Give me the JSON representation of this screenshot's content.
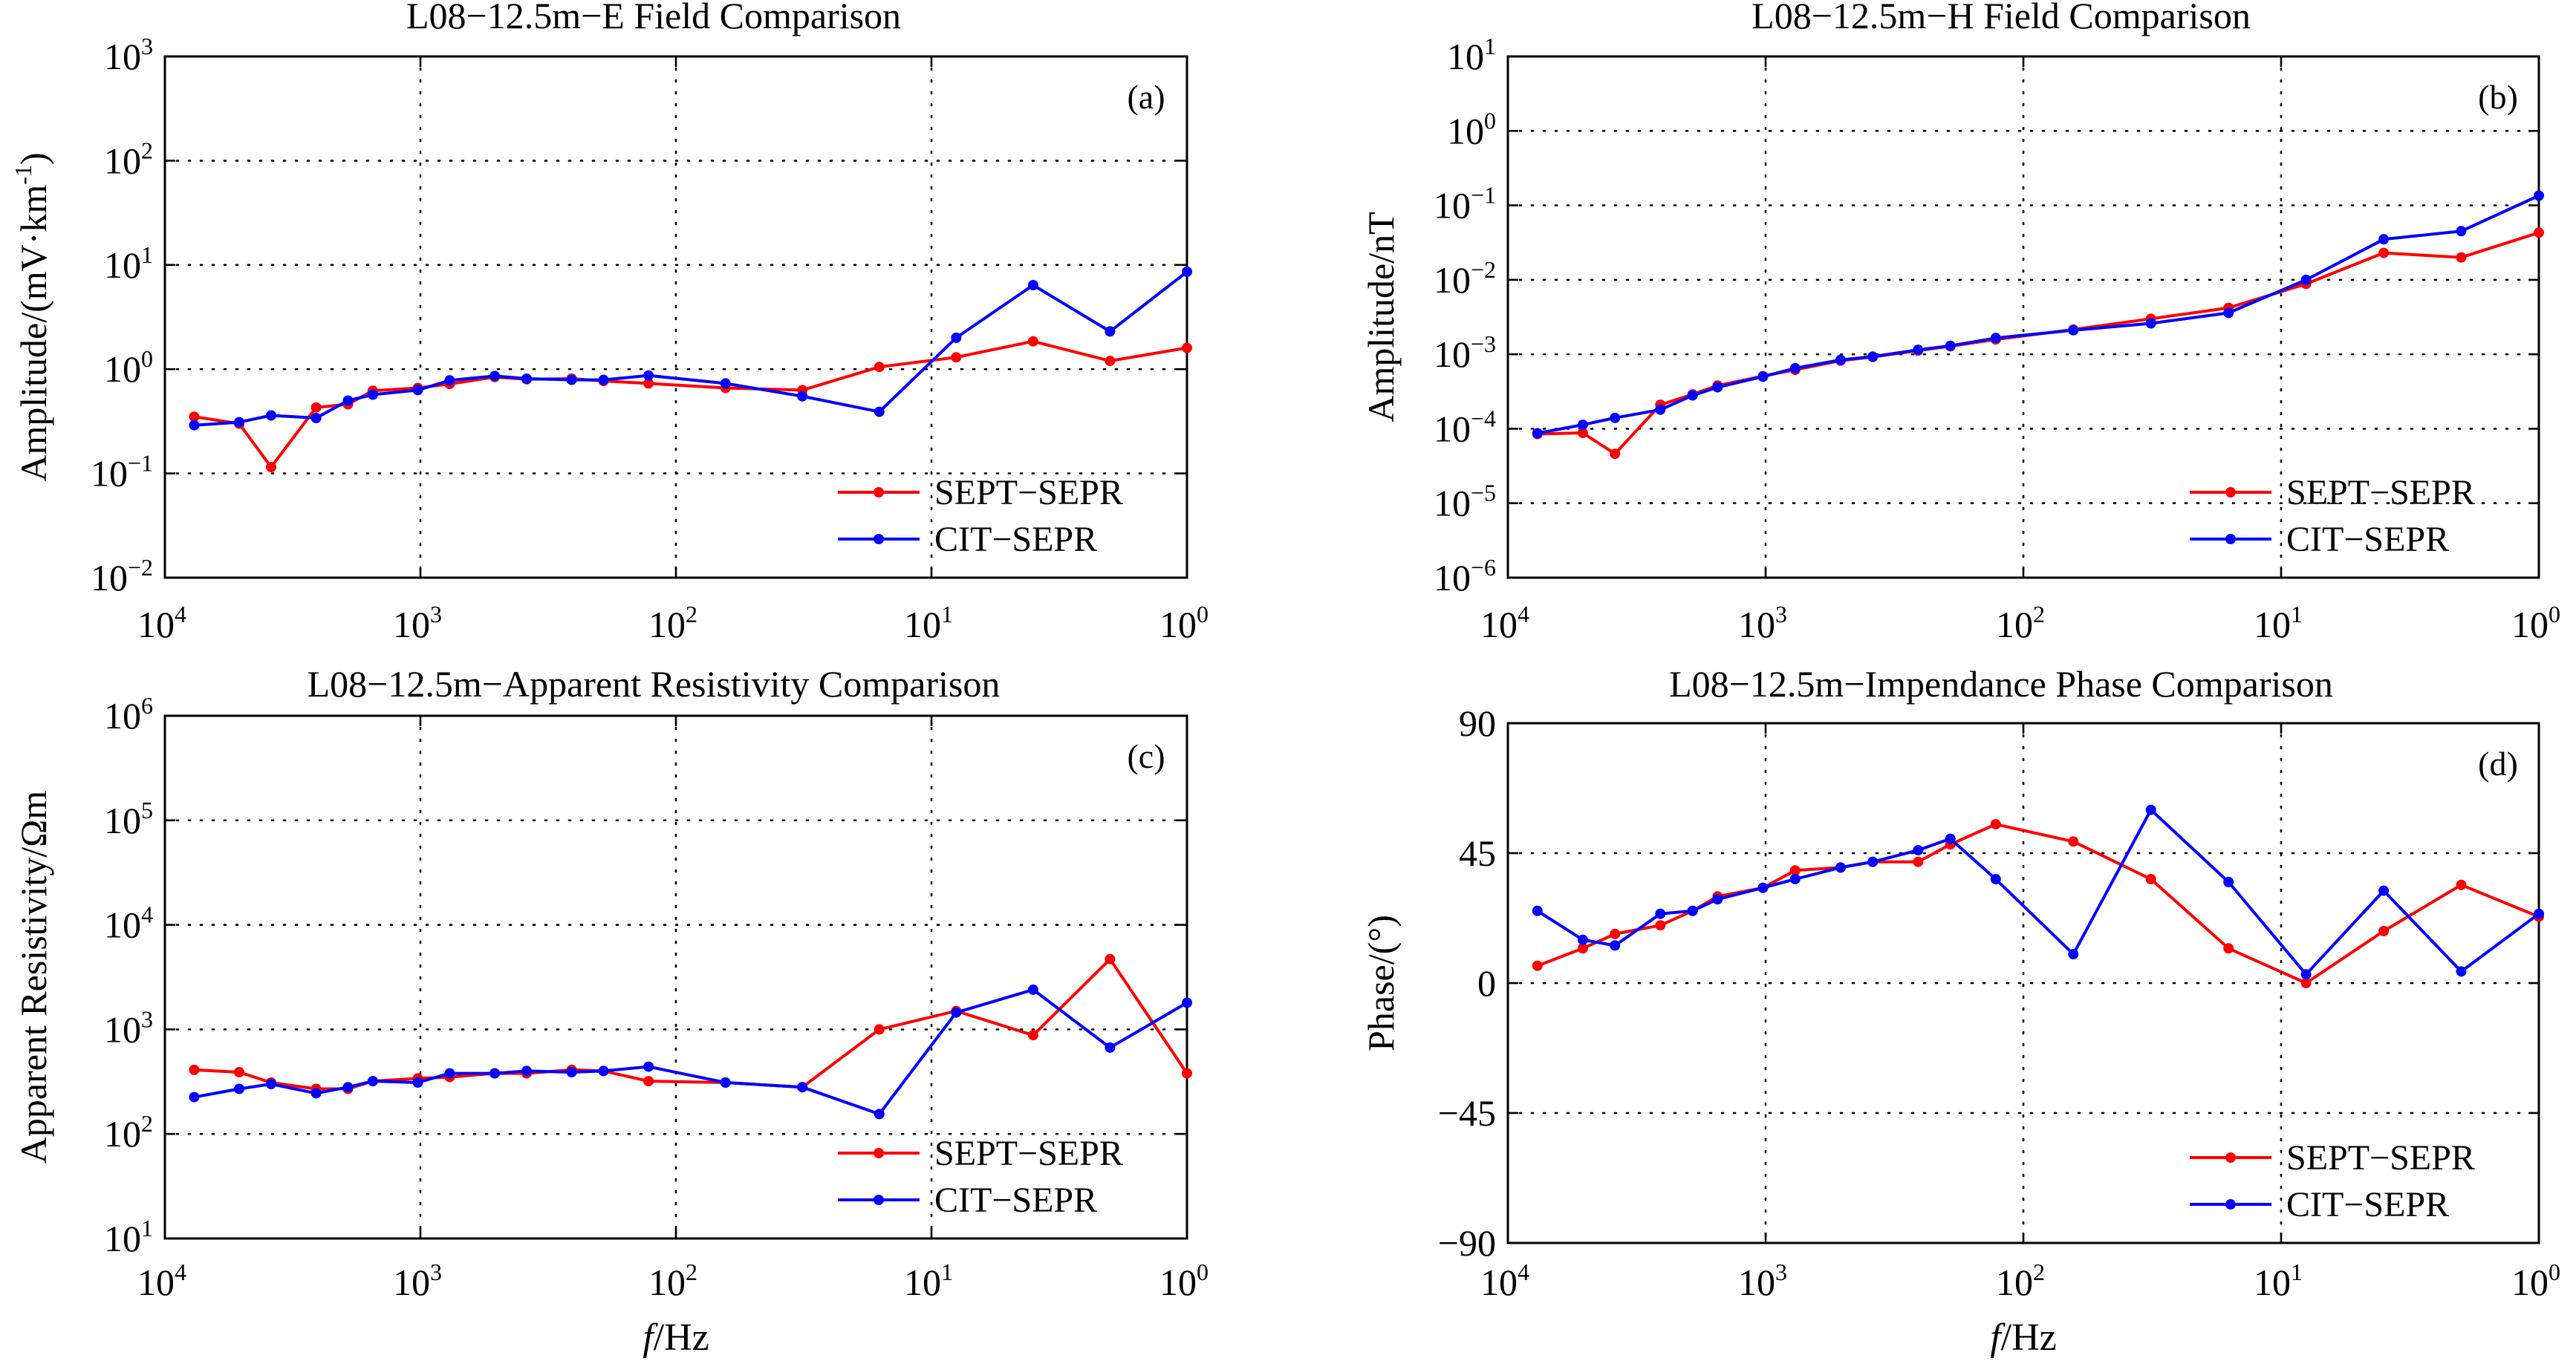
{
  "chart_data": [
    {
      "id": "a",
      "type": "line",
      "title": "L08−12.5m−E Field Comparison",
      "panel_label": "(a)",
      "ylabel": "Amplitude/(mV·km",
      "ylabel_sup": "-1",
      "ylabel_suffix": ")",
      "xlabel": "",
      "xscale": "log",
      "yscale": "log",
      "xlim": [
        10000,
        1
      ],
      "ylim": [
        0.01,
        1000
      ],
      "x_ticks": [
        {
          "base": "10",
          "exp": "4"
        },
        {
          "base": "10",
          "exp": "3"
        },
        {
          "base": "10",
          "exp": "2"
        },
        {
          "base": "10",
          "exp": "1"
        },
        {
          "base": "10",
          "exp": "0"
        }
      ],
      "y_ticks": [
        {
          "base": "10",
          "exp": "−2"
        },
        {
          "base": "10",
          "exp": "−1"
        },
        {
          "base": "10",
          "exp": "0"
        },
        {
          "base": "10",
          "exp": "1"
        },
        {
          "base": "10",
          "exp": "2"
        },
        {
          "base": "10",
          "exp": "3"
        }
      ],
      "grid": true,
      "legend_position": "bottom-right",
      "x": [
        7680,
        5120,
        3840,
        2560,
        1920,
        1536,
        1024,
        768,
        512,
        384,
        256,
        192,
        128,
        64,
        32,
        16,
        8,
        4,
        2,
        1
      ],
      "series": [
        {
          "name": "SEPT−SEPR",
          "color": "#ff0000",
          "values": [
            0.35,
            0.3,
            0.115,
            0.43,
            0.46,
            0.62,
            0.66,
            0.72,
            0.84,
            0.8,
            0.81,
            0.77,
            0.73,
            0.66,
            0.63,
            1.05,
            1.3,
            1.85,
            1.2,
            1.6
          ]
        },
        {
          "name": "CIT−SEPR",
          "color": "#0000ff",
          "values": [
            0.29,
            0.31,
            0.36,
            0.34,
            0.5,
            0.57,
            0.63,
            0.78,
            0.86,
            0.81,
            0.79,
            0.79,
            0.87,
            0.73,
            0.55,
            0.39,
            2.0,
            6.4,
            2.3,
            8.6
          ]
        }
      ]
    },
    {
      "id": "b",
      "type": "line",
      "title": "L08−12.5m−H Field Comparison",
      "panel_label": "(b)",
      "ylabel": "Amplitude/nT",
      "ylabel_sup": "",
      "ylabel_suffix": "",
      "xlabel": "",
      "xscale": "log",
      "yscale": "log",
      "xlim": [
        10000,
        1
      ],
      "ylim": [
        1e-06,
        10
      ],
      "x_ticks": [
        {
          "base": "10",
          "exp": "4"
        },
        {
          "base": "10",
          "exp": "3"
        },
        {
          "base": "10",
          "exp": "2"
        },
        {
          "base": "10",
          "exp": "1"
        },
        {
          "base": "10",
          "exp": "0"
        }
      ],
      "y_ticks": [
        {
          "base": "10",
          "exp": "−6"
        },
        {
          "base": "10",
          "exp": "−5"
        },
        {
          "base": "10",
          "exp": "−4"
        },
        {
          "base": "10",
          "exp": "−3"
        },
        {
          "base": "10",
          "exp": "−2"
        },
        {
          "base": "10",
          "exp": "−1"
        },
        {
          "base": "10",
          "exp": "0"
        },
        {
          "base": "10",
          "exp": "1"
        }
      ],
      "grid": true,
      "legend_position": "bottom-right",
      "x": [
        7680,
        5120,
        3840,
        2560,
        1920,
        1536,
        1024,
        768,
        512,
        384,
        256,
        192,
        128,
        64,
        32,
        16,
        8,
        4,
        2,
        1
      ],
      "series": [
        {
          "name": "SEPT−SEPR",
          "color": "#ff0000",
          "values": [
            8.5e-05,
            8.8e-05,
            4.6e-05,
            0.00021,
            0.00029,
            0.00038,
            0.00051,
            0.00062,
            0.00082,
            0.00092,
            0.00112,
            0.00128,
            0.00158,
            0.00215,
            0.003,
            0.0042,
            0.0088,
            0.023,
            0.02,
            0.043
          ]
        },
        {
          "name": "CIT−SEPR",
          "color": "#0000ff",
          "values": [
            8.7e-05,
            0.000113,
            0.00014,
            0.00018,
            0.00028,
            0.00036,
            0.0005,
            0.00065,
            0.00084,
            0.00093,
            0.00115,
            0.0013,
            0.00165,
            0.0021,
            0.0026,
            0.0036,
            0.01,
            0.035,
            0.045,
            0.135
          ]
        }
      ]
    },
    {
      "id": "c",
      "type": "line",
      "title": "L08−12.5m−Apparent Resistivity Comparison",
      "panel_label": "(c)",
      "ylabel": "Apparent Resistivity/Ωm",
      "ylabel_sup": "",
      "ylabel_suffix": "",
      "xlabel": "f/Hz",
      "xscale": "log",
      "yscale": "log",
      "xlim": [
        10000,
        1
      ],
      "ylim": [
        10,
        1000000
      ],
      "x_ticks": [
        {
          "base": "10",
          "exp": "4"
        },
        {
          "base": "10",
          "exp": "3"
        },
        {
          "base": "10",
          "exp": "2"
        },
        {
          "base": "10",
          "exp": "1"
        },
        {
          "base": "10",
          "exp": "0"
        }
      ],
      "y_ticks": [
        {
          "base": "10",
          "exp": "1"
        },
        {
          "base": "10",
          "exp": "2"
        },
        {
          "base": "10",
          "exp": "3"
        },
        {
          "base": "10",
          "exp": "4"
        },
        {
          "base": "10",
          "exp": "5"
        },
        {
          "base": "10",
          "exp": "6"
        }
      ],
      "grid": true,
      "legend_position": "bottom-right",
      "x": [
        7680,
        5120,
        3840,
        2560,
        1920,
        1536,
        1024,
        768,
        512,
        384,
        256,
        192,
        128,
        64,
        32,
        16,
        8,
        4,
        2,
        1
      ],
      "series": [
        {
          "name": "SEPT−SEPR",
          "color": "#ff0000",
          "values": [
            410,
            390,
            310,
            270,
            270,
            320,
            340,
            350,
            380,
            380,
            410,
            400,
            320,
            310,
            280,
            1000,
            1500,
            880,
            4700,
            380
          ]
        },
        {
          "name": "CIT−SEPR",
          "color": "#0000ff",
          "values": [
            225,
            270,
            300,
            245,
            280,
            320,
            310,
            380,
            380,
            400,
            390,
            400,
            440,
            310,
            280,
            155,
            1450,
            2400,
            670,
            1800
          ]
        }
      ]
    },
    {
      "id": "d",
      "type": "line",
      "title": "L08−12.5m−Impendance Phase Comparison",
      "panel_label": "(d)",
      "ylabel": "Phase/(°)",
      "ylabel_sup": "",
      "ylabel_suffix": "",
      "xlabel": "f/Hz",
      "xscale": "log",
      "yscale": "linear",
      "xlim": [
        10000,
        1
      ],
      "ylim": [
        -90,
        90
      ],
      "x_ticks": [
        {
          "base": "10",
          "exp": "4"
        },
        {
          "base": "10",
          "exp": "3"
        },
        {
          "base": "10",
          "exp": "2"
        },
        {
          "base": "10",
          "exp": "1"
        },
        {
          "base": "10",
          "exp": "0"
        }
      ],
      "y_ticks": [
        {
          "text": "−90",
          "value": -90
        },
        {
          "text": "−45",
          "value": -45
        },
        {
          "text": "0",
          "value": 0
        },
        {
          "text": "45",
          "value": 45
        },
        {
          "text": "90",
          "value": 90
        }
      ],
      "grid": true,
      "legend_position": "bottom-right",
      "x": [
        7680,
        5120,
        3840,
        2560,
        1920,
        1536,
        1024,
        768,
        512,
        384,
        256,
        192,
        128,
        64,
        32,
        16,
        8,
        4,
        2,
        1
      ],
      "series": [
        {
          "name": "SEPT−SEPR",
          "color": "#ff0000",
          "values": [
            6,
            12,
            17,
            20,
            25,
            30,
            33,
            39,
            40,
            42,
            42,
            48,
            55,
            49,
            36,
            12,
            0,
            18,
            34,
            23
          ]
        },
        {
          "name": "CIT−SEPR",
          "color": "#0000ff",
          "values": [
            25,
            15,
            13,
            24,
            25,
            29,
            33,
            36,
            40,
            42,
            46,
            50,
            36,
            10,
            60,
            35,
            3,
            32,
            4,
            24
          ]
        }
      ]
    }
  ]
}
